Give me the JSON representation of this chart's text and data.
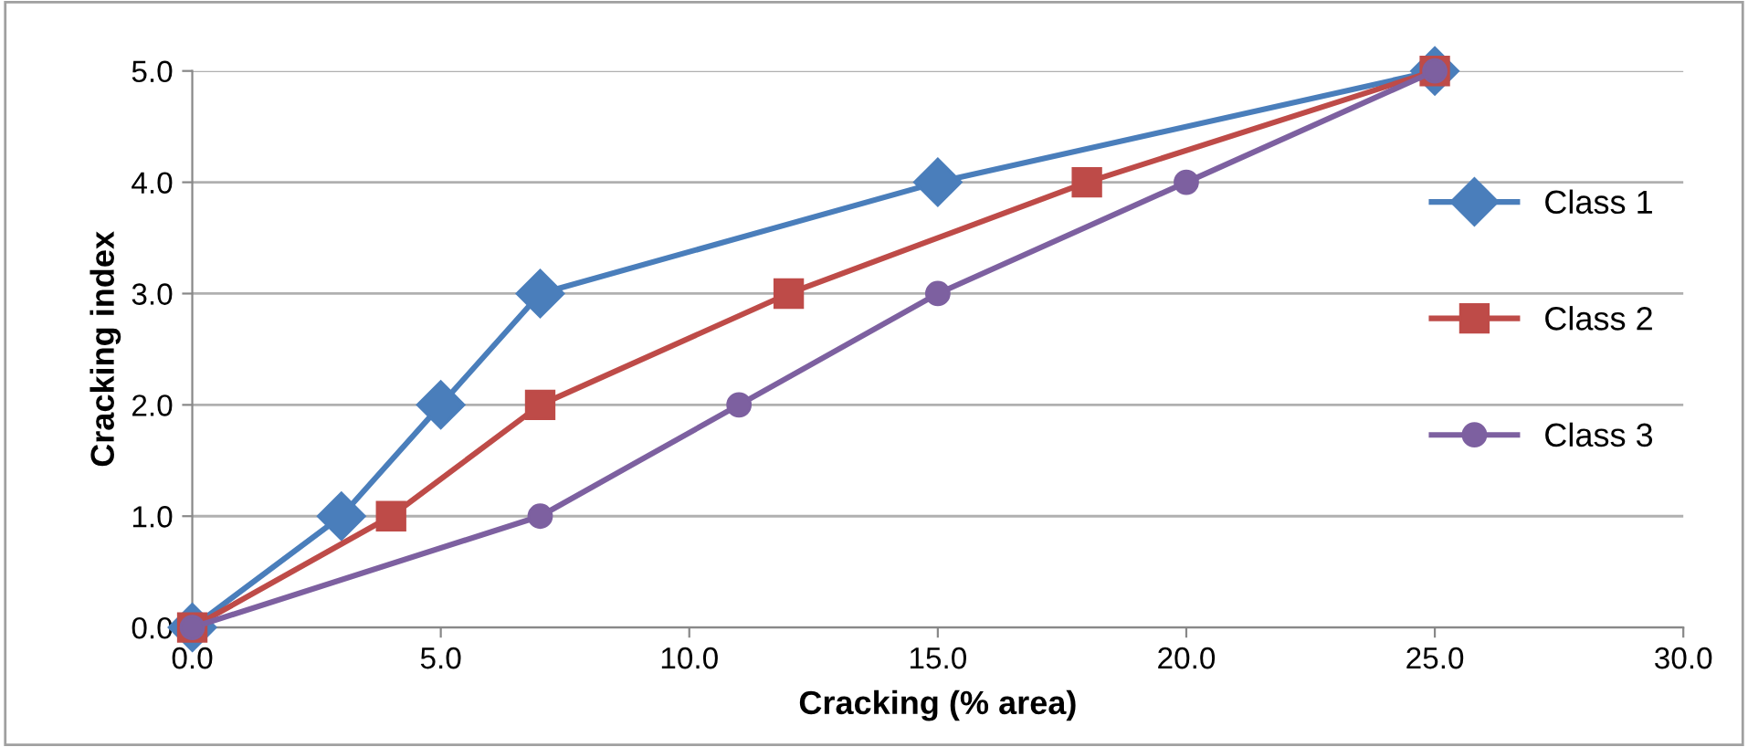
{
  "chart_data": {
    "type": "line",
    "xlabel": "Cracking (% area)",
    "ylabel": "Cracking index",
    "series": [
      {
        "name": "Class 1",
        "color": "#4a7ebb",
        "marker": "diamond",
        "x": [
          0,
          3,
          5,
          7,
          15,
          25
        ],
        "values": [
          0,
          1,
          2,
          3,
          4,
          5
        ]
      },
      {
        "name": "Class 2",
        "color": "#be4b48",
        "marker": "square",
        "x": [
          0,
          4,
          7,
          12,
          18,
          25
        ],
        "values": [
          0,
          1,
          2,
          3,
          4,
          5
        ]
      },
      {
        "name": "Class 3",
        "color": "#7d60a0",
        "marker": "circle",
        "x": [
          0,
          7,
          11,
          15,
          20,
          25
        ],
        "values": [
          0,
          1,
          2,
          3,
          4,
          5
        ]
      }
    ],
    "xlim": [
      0,
      30
    ],
    "ylim": [
      0,
      5
    ],
    "xticks": [
      {
        "value": 0,
        "label": "0.0"
      },
      {
        "value": 5,
        "label": "5.0"
      },
      {
        "value": 10,
        "label": "10.0"
      },
      {
        "value": 15,
        "label": "15.0"
      },
      {
        "value": 20,
        "label": "20.0"
      },
      {
        "value": 25,
        "label": "25.0"
      },
      {
        "value": 30,
        "label": "30.0"
      }
    ],
    "yticks": [
      {
        "value": 0,
        "label": "0.0"
      },
      {
        "value": 1,
        "label": "1.0"
      },
      {
        "value": 2,
        "label": "2.0"
      },
      {
        "value": 3,
        "label": "3.0"
      },
      {
        "value": 4,
        "label": "4.0"
      },
      {
        "value": 5,
        "label": "5.0"
      }
    ],
    "grid": "y",
    "legend": "right",
    "line_style": "solid"
  }
}
